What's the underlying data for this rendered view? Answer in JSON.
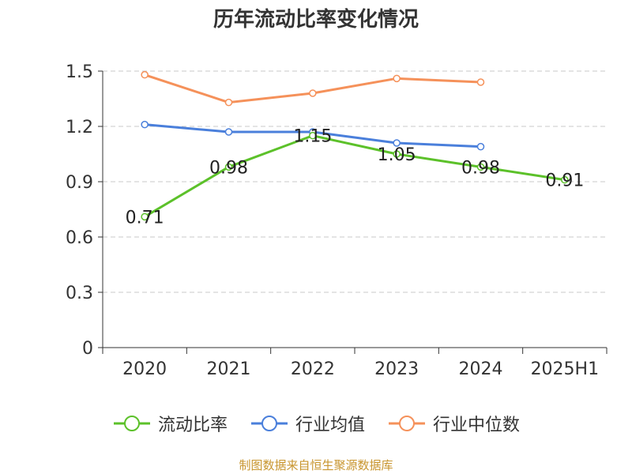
{
  "chart_data": {
    "type": "line",
    "title": "历年流动比率变化情况",
    "categories": [
      "2020",
      "2021",
      "2022",
      "2023",
      "2024",
      "2025H1"
    ],
    "ylim": [
      0,
      1.5
    ],
    "yticks": [
      "0",
      "0.3",
      "0.6",
      "0.9",
      "1.2",
      "1.5"
    ],
    "ytick_values": [
      0,
      0.3,
      0.6,
      0.9,
      1.2,
      1.5
    ],
    "grid": true,
    "legend_position": "bottom",
    "series": [
      {
        "name": "流动比率",
        "color": "#5cc12a",
        "values": [
          0.71,
          0.98,
          1.15,
          1.05,
          0.98,
          0.91
        ],
        "labels": [
          "0.71",
          "0.98",
          "1.15",
          "1.05",
          "0.98",
          "0.91"
        ]
      },
      {
        "name": "行业均值",
        "color": "#4a7fdb",
        "values": [
          1.21,
          1.17,
          1.17,
          1.11,
          1.09,
          null
        ]
      },
      {
        "name": "行业中位数",
        "color": "#f5915a",
        "values": [
          1.48,
          1.33,
          1.38,
          1.46,
          1.44,
          null
        ]
      }
    ]
  },
  "source_note": "制图数据来自恒生聚源数据库"
}
